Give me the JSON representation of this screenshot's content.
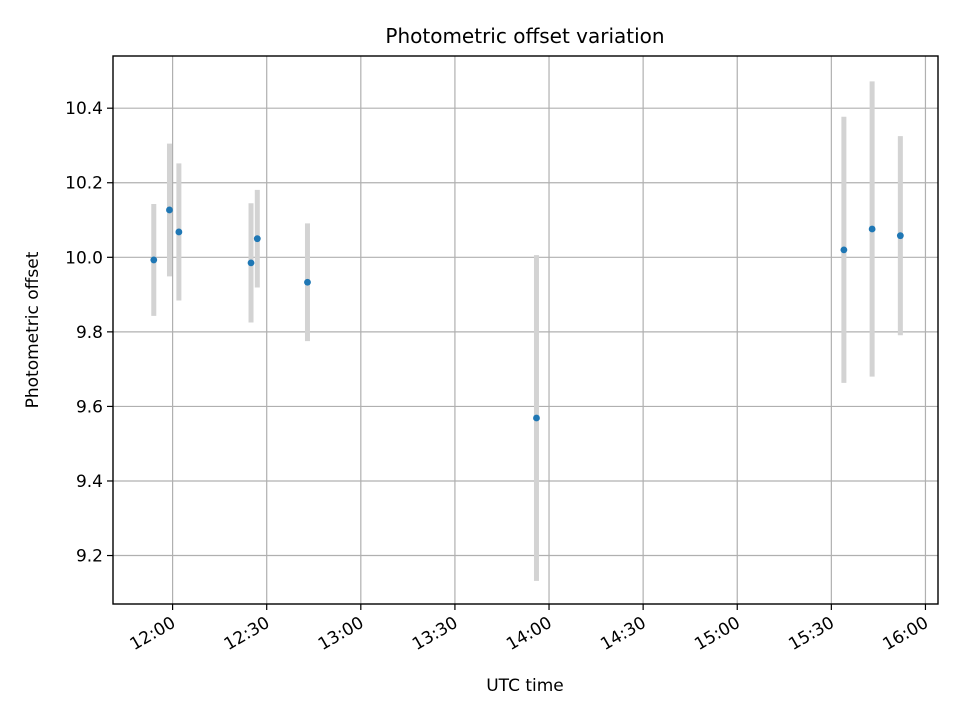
{
  "chart_data": {
    "type": "scatter",
    "title": "Photometric offset variation",
    "xlabel": "UTC time",
    "ylabel": "Photometric offset",
    "x_unit": "time of day (UTC)",
    "xlim": [
      "11:41",
      "16:04"
    ],
    "ylim": [
      9.07,
      10.54
    ],
    "x_ticks": [
      "12:00",
      "12:30",
      "13:00",
      "13:30",
      "14:00",
      "14:30",
      "15:00",
      "15:30",
      "16:00"
    ],
    "y_ticks": [
      9.2,
      9.4,
      9.6,
      9.8,
      10.0,
      10.2,
      10.4
    ],
    "y_tick_labels": [
      "9.2",
      "9.4",
      "9.6",
      "9.8",
      "10.0",
      "10.2",
      "10.4"
    ],
    "grid": true,
    "point_color": "#1f77b4",
    "errorbar_color": "#d3d3d3",
    "points": [
      {
        "x": "11:54",
        "y": 9.993,
        "yerr": 0.15
      },
      {
        "x": "11:59",
        "y": 10.127,
        "yerr": 0.178
      },
      {
        "x": "12:02",
        "y": 10.068,
        "yerr": 0.184
      },
      {
        "x": "12:25",
        "y": 9.985,
        "yerr": 0.16
      },
      {
        "x": "12:27",
        "y": 10.05,
        "yerr": 0.131
      },
      {
        "x": "12:43",
        "y": 9.933,
        "yerr": 0.158
      },
      {
        "x": "13:56",
        "y": 9.569,
        "yerr": 0.437
      },
      {
        "x": "15:34",
        "y": 10.02,
        "yerr": 0.357
      },
      {
        "x": "15:43",
        "y": 10.076,
        "yerr": 0.396
      },
      {
        "x": "15:52",
        "y": 10.058,
        "yerr": 0.267
      }
    ]
  }
}
